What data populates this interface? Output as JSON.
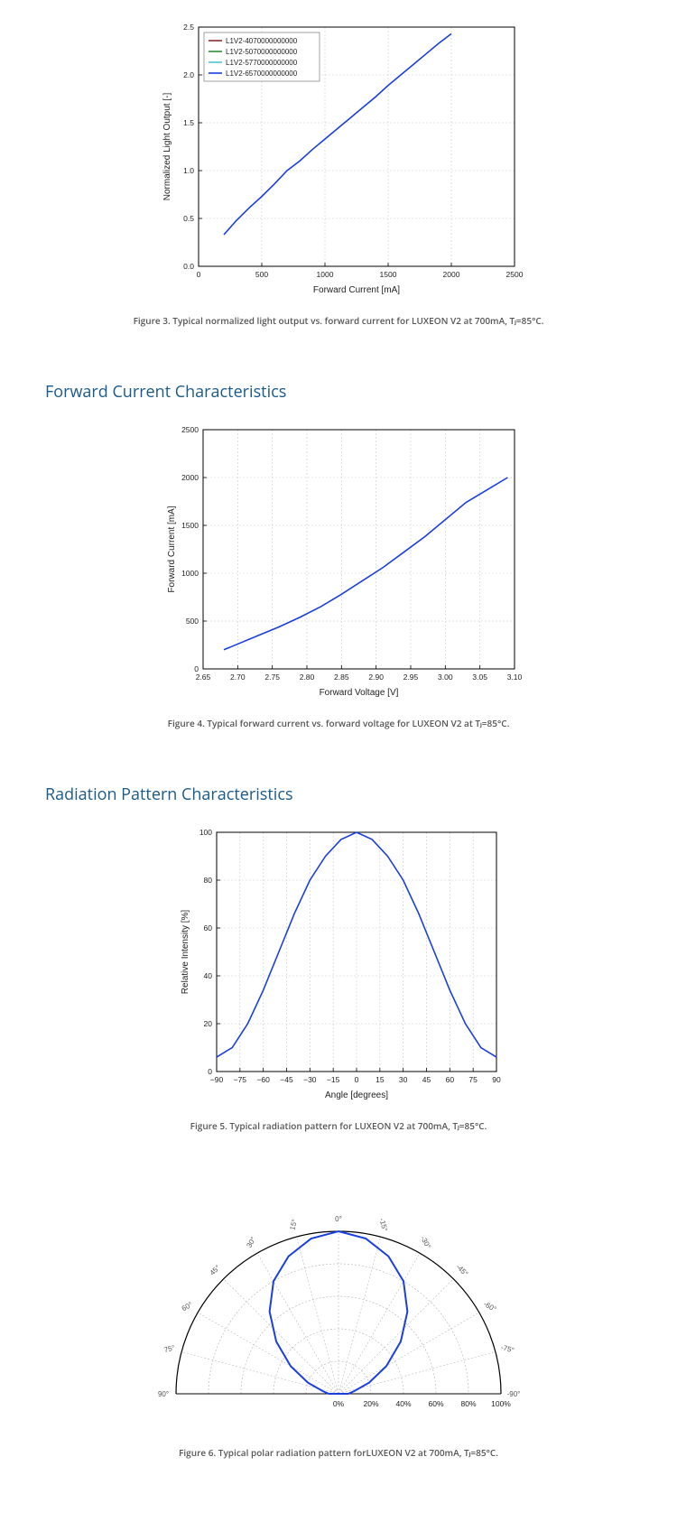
{
  "fig3": {
    "type": "line",
    "caption": "Figure 3. Typical normalized light output vs. forward current for LUXEON V2 at 700mA, Tⱼ=85°C.",
    "xlabel": "Forward Current [mA]",
    "ylabel": "Normalized Light Output [-]",
    "xlim": [
      0,
      2500
    ],
    "ylim": [
      0.0,
      2.5
    ],
    "xticks": [
      0,
      500,
      1000,
      1500,
      2000,
      2500
    ],
    "yticks": [
      0.0,
      0.5,
      1.0,
      1.5,
      2.0,
      2.5
    ],
    "legend": [
      "L1V2-4070000000000",
      "L1V2-5070000000000",
      "L1V2-5770000000000",
      "L1V2-6570000000000"
    ],
    "legend_colors": [
      "#8b2e2e",
      "#2e8b3a",
      "#4fc3d9",
      "#1a3fe0"
    ],
    "series_color": "#1a3fe0",
    "grid_color": "#cccccc",
    "data": [
      [
        200,
        0.33
      ],
      [
        300,
        0.48
      ],
      [
        400,
        0.61
      ],
      [
        500,
        0.73
      ],
      [
        600,
        0.86
      ],
      [
        700,
        1.0
      ],
      [
        800,
        1.1
      ],
      [
        900,
        1.22
      ],
      [
        1000,
        1.33
      ],
      [
        1100,
        1.44
      ],
      [
        1200,
        1.55
      ],
      [
        1300,
        1.66
      ],
      [
        1400,
        1.77
      ],
      [
        1500,
        1.89
      ],
      [
        1600,
        2.0
      ],
      [
        1700,
        2.11
      ],
      [
        1800,
        2.22
      ],
      [
        1900,
        2.33
      ],
      [
        2000,
        2.43
      ]
    ]
  },
  "section_fwd": "Forward Current Characteristics",
  "fig4": {
    "type": "line",
    "caption": "Figure 4. Typical forward current vs. forward voltage for LUXEON V2 at Tⱼ=85°C.",
    "xlabel": "Forward Voltage [V]",
    "ylabel": "Forward Current [mA]",
    "xlim": [
      2.65,
      3.1
    ],
    "ylim": [
      0,
      2500
    ],
    "xticks": [
      2.65,
      2.7,
      2.75,
      2.8,
      2.85,
      2.9,
      2.95,
      3.0,
      3.05,
      3.1
    ],
    "yticks": [
      0,
      500,
      1000,
      1500,
      2000,
      2500
    ],
    "series_color": "#1a3fe0",
    "grid_color": "#cccccc",
    "data": [
      [
        2.68,
        200
      ],
      [
        2.7,
        260
      ],
      [
        2.73,
        350
      ],
      [
        2.76,
        440
      ],
      [
        2.79,
        540
      ],
      [
        2.82,
        650
      ],
      [
        2.85,
        780
      ],
      [
        2.88,
        920
      ],
      [
        2.91,
        1060
      ],
      [
        2.94,
        1220
      ],
      [
        2.97,
        1380
      ],
      [
        3.0,
        1560
      ],
      [
        3.03,
        1740
      ],
      [
        3.06,
        1870
      ],
      [
        3.09,
        2000
      ]
    ]
  },
  "section_rad": "Radiation Pattern Characteristics",
  "fig5": {
    "type": "line",
    "caption": "Figure 5. Typical radiation pattern for LUXEON V2 at 700mA, Tⱼ=85°C.",
    "xlabel": "Angle [degrees]",
    "ylabel": "Relative Intensity [%]",
    "xlim": [
      -90,
      90
    ],
    "ylim": [
      0,
      100
    ],
    "xticks": [
      -90,
      -75,
      -60,
      -45,
      -30,
      -15,
      0,
      15,
      30,
      45,
      60,
      75,
      90
    ],
    "yticks": [
      0,
      20,
      40,
      60,
      80,
      100
    ],
    "series_color": "#1a3fe0",
    "grid_color": "#cccccc",
    "data": [
      [
        -90,
        6
      ],
      [
        -80,
        10
      ],
      [
        -70,
        20
      ],
      [
        -60,
        34
      ],
      [
        -50,
        50
      ],
      [
        -40,
        66
      ],
      [
        -30,
        80
      ],
      [
        -20,
        90
      ],
      [
        -10,
        97
      ],
      [
        0,
        100
      ],
      [
        10,
        97
      ],
      [
        20,
        90
      ],
      [
        30,
        80
      ],
      [
        40,
        66
      ],
      [
        50,
        50
      ],
      [
        60,
        34
      ],
      [
        70,
        20
      ],
      [
        80,
        10
      ],
      [
        90,
        6
      ]
    ]
  },
  "fig6": {
    "type": "polar",
    "caption": "Figure 6. Typical polar radiation pattern forLUXEON V2 at 700mA, Tⱼ=85°C.",
    "angle_ticks": [
      -90,
      -75,
      -60,
      -45,
      -30,
      -15,
      0,
      15,
      30,
      45,
      60,
      75,
      90
    ],
    "radial_ticks": [
      0,
      20,
      40,
      60,
      80,
      100
    ],
    "radial_labels": [
      "0%",
      "20%",
      "40%",
      "60%",
      "80%",
      "100%"
    ],
    "series_color": "#1a3fe0",
    "grid_color": "#bbbbbb",
    "data": [
      [
        -90,
        6
      ],
      [
        -80,
        10
      ],
      [
        -70,
        20
      ],
      [
        -60,
        34
      ],
      [
        -50,
        50
      ],
      [
        -40,
        66
      ],
      [
        -30,
        80
      ],
      [
        -20,
        90
      ],
      [
        -10,
        97
      ],
      [
        0,
        100
      ],
      [
        10,
        97
      ],
      [
        20,
        90
      ],
      [
        30,
        80
      ],
      [
        40,
        66
      ],
      [
        50,
        50
      ],
      [
        60,
        34
      ],
      [
        70,
        20
      ],
      [
        80,
        10
      ],
      [
        90,
        6
      ]
    ]
  }
}
